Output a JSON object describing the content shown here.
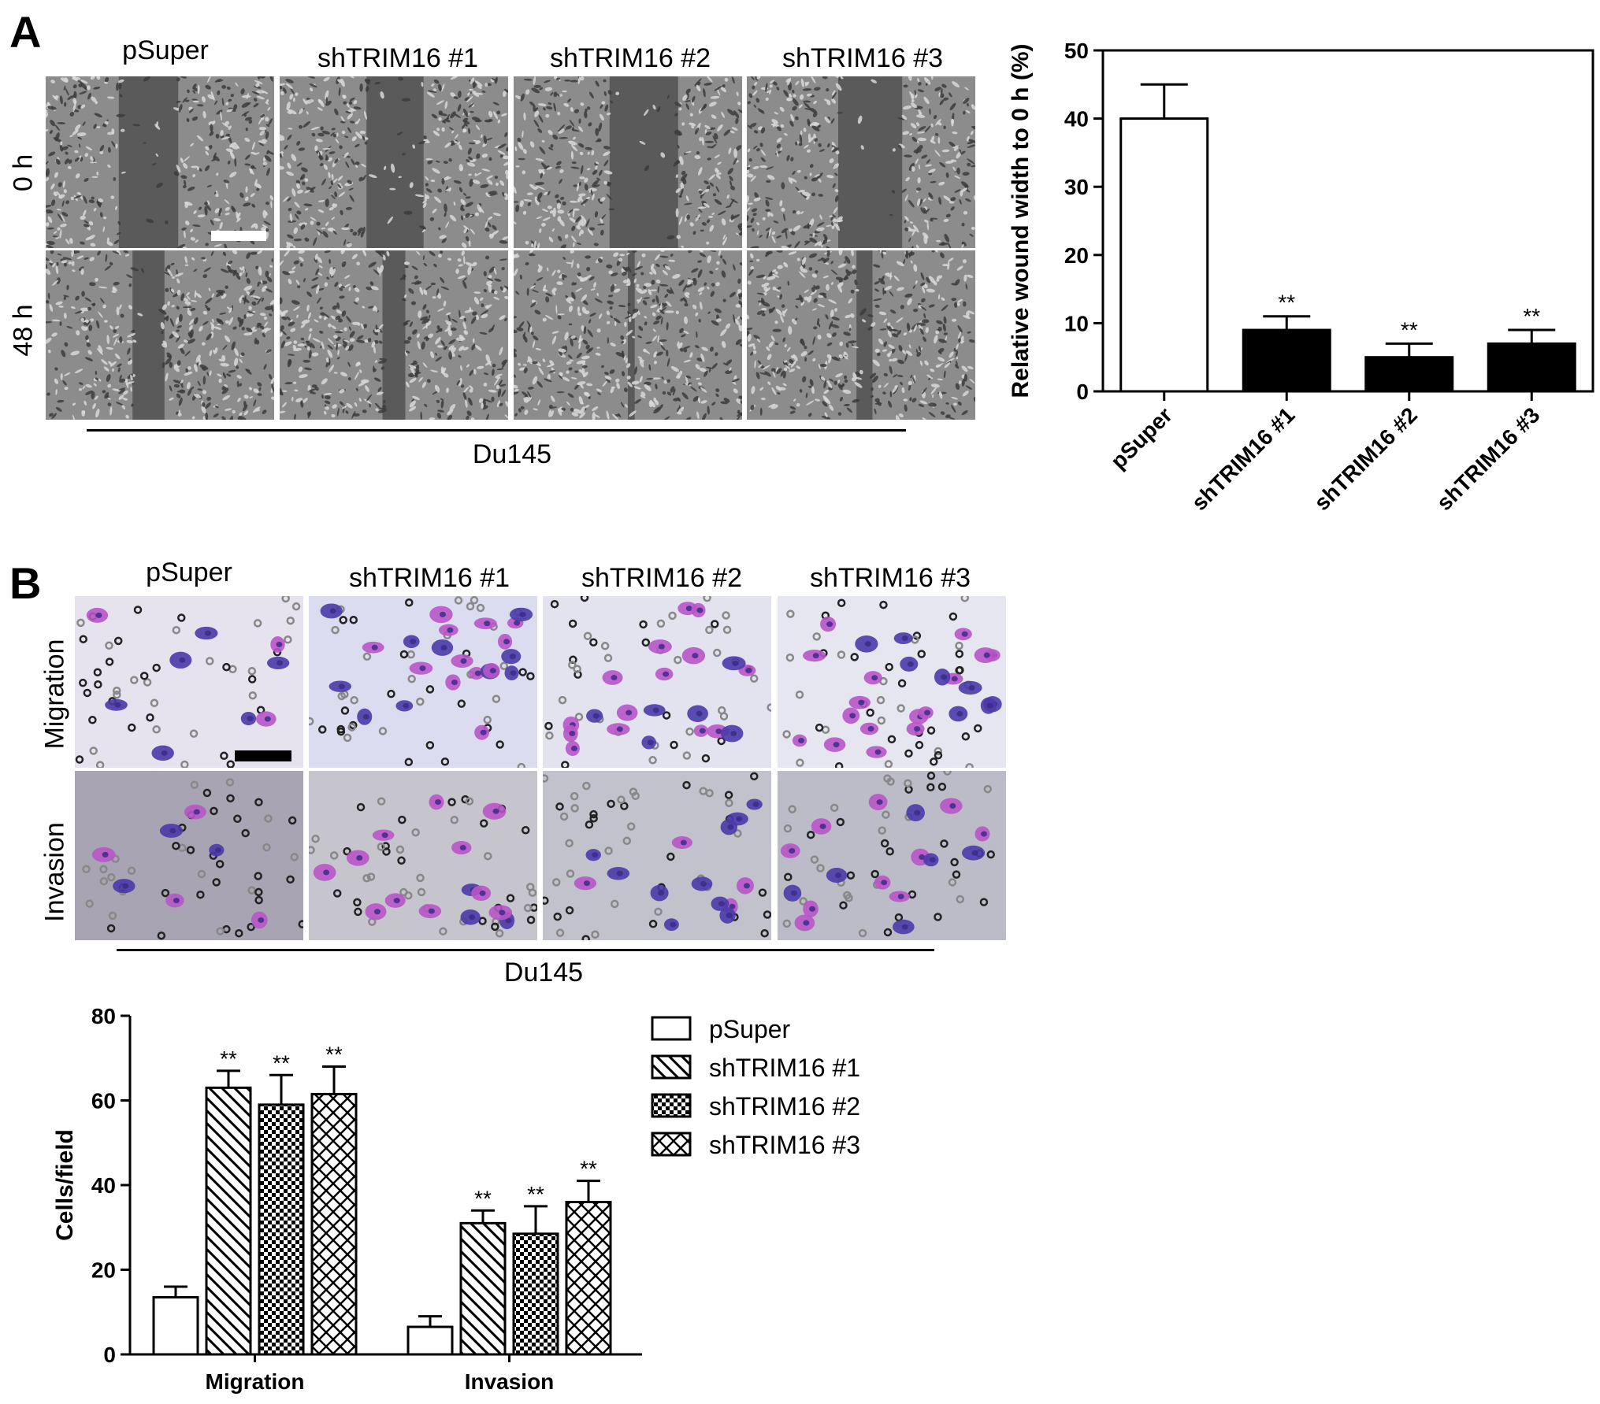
{
  "panelA": {
    "letter": "A",
    "columns": [
      "pSuper",
      "shTRIM16 #1",
      "shTRIM16 #2",
      "shTRIM16 #3"
    ],
    "rows": [
      "0 h",
      "48 h"
    ],
    "cell_line": "Du145"
  },
  "panelB": {
    "letter": "B",
    "columns": [
      "pSuper",
      "shTRIM16 #1",
      "shTRIM16 #2",
      "shTRIM16 #3"
    ],
    "rows": [
      "Migration",
      "Invasion"
    ],
    "cell_line": "Du145"
  },
  "chart_data": [
    {
      "type": "bar",
      "categories": [
        "pSuper",
        "shTRIM16 #1",
        "shTRIM16 #2",
        "shTRIM16 #3"
      ],
      "values": [
        40,
        9,
        5,
        7
      ],
      "errors": [
        5,
        2,
        2,
        2
      ],
      "significance": [
        "",
        "**",
        "**",
        "**"
      ],
      "fills": [
        "#ffffff",
        "#000000",
        "#000000",
        "#000000"
      ],
      "ylabel": "Relative wound width to 0 h (%)",
      "ylim": [
        0,
        50
      ],
      "yticks": [
        0,
        10,
        20,
        30,
        40,
        50
      ],
      "grid": false
    },
    {
      "type": "bar",
      "categories": [
        "Migration",
        "Invasion"
      ],
      "series": [
        {
          "name": "pSuper",
          "values": [
            13.5,
            6.5
          ],
          "errors": [
            2.5,
            2.5
          ],
          "significance": [
            "",
            ""
          ],
          "pattern": "open"
        },
        {
          "name": "shTRIM16 #1",
          "values": [
            63,
            31
          ],
          "errors": [
            4,
            3
          ],
          "significance": [
            "**",
            "**"
          ],
          "pattern": "diagonal-hatch"
        },
        {
          "name": "shTRIM16 #2",
          "values": [
            59,
            28.5
          ],
          "errors": [
            7,
            6.5
          ],
          "significance": [
            "**",
            "**"
          ],
          "pattern": "checkerboard"
        },
        {
          "name": "shTRIM16 #3",
          "values": [
            61.5,
            36
          ],
          "errors": [
            6.5,
            5
          ],
          "significance": [
            "**",
            "**"
          ],
          "pattern": "crosshatch"
        }
      ],
      "ylabel": "Cells/field",
      "ylim": [
        0,
        80
      ],
      "yticks": [
        0,
        20,
        40,
        60,
        80
      ],
      "legend": "right",
      "grid": false
    }
  ]
}
